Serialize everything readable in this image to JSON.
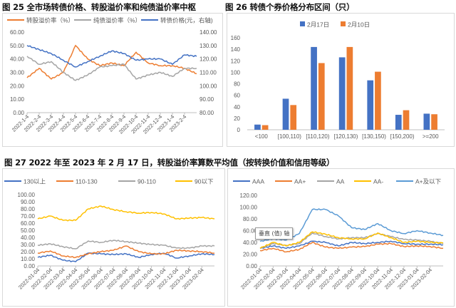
{
  "titles": {
    "fig25": "图 25  全市场转债价格、转股溢价率和纯债溢价率中枢",
    "fig26": "图 26  转债个券价格分布区间（只）",
    "fig27": "图 27  2022 年至 2023 年 2 月 17 日，转股溢价率算数平均值（按转换价值和信用等级）"
  },
  "tooltip": "垂直 (值) 轴",
  "chart_data": [
    {
      "id": "fig25",
      "type": "line",
      "x": [
        "2022-1-4",
        "2022-2-4",
        "2022-3-4",
        "2022-4-4",
        "2022-5-4",
        "2022-6-4",
        "2022-7-4",
        "2022-8-4",
        "2022-9-4",
        "2022-10-4",
        "2022-11-4",
        "2022-12-4",
        "2023-1-4",
        "2023-2-4",
        "2023-2-17"
      ],
      "xticks": [
        "2022-1-4",
        "2022-2-4",
        "2022-3-4",
        "2022-4-4",
        "2022-5-4",
        "2022-6-4",
        "2022-7-4",
        "2022-8-4",
        "2022-9-4",
        "2022-10-4",
        "2022-11-4",
        "2022-12-4",
        "2023-1-4",
        "2023-2-4"
      ],
      "ylim": [
        0,
        60
      ],
      "yticks": [
        "0.00",
        "10.00",
        "20.00",
        "30.00",
        "40.00",
        "50.00",
        "60.00"
      ],
      "y2lim": [
        80,
        140
      ],
      "y2ticks": [
        "80.00",
        "90.00",
        "100.00",
        "110.00",
        "120.00",
        "130.00",
        "140.00"
      ],
      "legend": "top",
      "grid": false,
      "series": [
        {
          "name": "转股溢价率（%）",
          "color": "#ED7D31",
          "axis": "left",
          "values": [
            26,
            33,
            25,
            30,
            50,
            40,
            35,
            37,
            35,
            45,
            37,
            35,
            35,
            33,
            29
          ]
        },
        {
          "name": "纯债溢价率（%）",
          "color": "#A5A5A5",
          "axis": "left",
          "values": [
            42,
            36,
            38,
            30,
            24,
            28,
            34,
            35,
            36,
            25,
            28,
            30,
            27,
            33,
            33
          ]
        },
        {
          "name": "转债价格(元，右轴)",
          "color": "#4472C4",
          "axis": "right",
          "values": [
            130,
            127,
            124,
            119,
            114,
            118,
            122,
            126,
            124,
            119,
            120,
            120,
            116,
            123,
            122
          ]
        }
      ]
    },
    {
      "id": "fig26",
      "type": "bar",
      "categories": [
        "<100",
        "[100,110)",
        "[110,120)",
        "[120,130)",
        "[130,150)",
        "[150,200)",
        ">=200"
      ],
      "ylim": [
        0,
        160
      ],
      "yticks": [
        "0",
        "20",
        "40",
        "60",
        "80",
        "100",
        "120",
        "140",
        "160"
      ],
      "legend": "top",
      "grid": false,
      "series": [
        {
          "name": "2月17日",
          "color": "#4472C4",
          "values": [
            9,
            54,
            144,
            126,
            86,
            26,
            28
          ]
        },
        {
          "name": "2月10日",
          "color": "#ED7D31",
          "values": [
            8,
            43,
            116,
            144,
            101,
            34,
            27
          ]
        }
      ]
    },
    {
      "id": "fig27a",
      "type": "line",
      "x": [
        "2022-01-04",
        "2022-02-04",
        "2022-03-04",
        "2022-04-04",
        "2022-05-04",
        "2022-06-04",
        "2022-07-04",
        "2022-08-04",
        "2022-09-04",
        "2022-10-04",
        "2022-11-04",
        "2022-12-04",
        "2023-01-04",
        "2023-02-04",
        "2023-02-17"
      ],
      "xticks": [
        "2022-01-04",
        "2022-02-04",
        "2022-03-04",
        "2022-04-04",
        "2022-05-04",
        "2022-06-04",
        "2022-07-04",
        "2022-08-04",
        "2022-09-04",
        "2022-10-04",
        "2022-11-04",
        "2022-12-04",
        "2023-01-04",
        "2023-02-04"
      ],
      "ylim": [
        0,
        100
      ],
      "yticks": [
        "0.00",
        "10.00",
        "20.00",
        "30.00",
        "40.00",
        "50.00",
        "60.00",
        "70.00",
        "80.00",
        "90.00",
        "100.00"
      ],
      "legend": "top",
      "grid": false,
      "series": [
        {
          "name": "130以上",
          "color": "#4472C4",
          "values": [
            12,
            15,
            8,
            6,
            18,
            17,
            16,
            17,
            12,
            16,
            18,
            11,
            14,
            17,
            16
          ]
        },
        {
          "name": "110-130",
          "color": "#ED7D31",
          "values": [
            18,
            21,
            14,
            12,
            17,
            20,
            22,
            28,
            20,
            17,
            17,
            22,
            21,
            20,
            18
          ]
        },
        {
          "name": "90-110",
          "color": "#A5A5A5",
          "values": [
            29,
            31,
            27,
            24,
            35,
            33,
            36,
            34,
            32,
            30,
            29,
            25,
            25,
            28,
            28
          ]
        },
        {
          "name": "90以下",
          "color": "#FFC000",
          "values": [
            66,
            70,
            64,
            64,
            80,
            84,
            79,
            76,
            74,
            75,
            73,
            66,
            67,
            68,
            66
          ]
        }
      ]
    },
    {
      "id": "fig27b",
      "type": "line",
      "x": [
        "2022-01-04",
        "2022-02-04",
        "2022-03-04",
        "2022-04-04",
        "2022-05-04",
        "2022-06-04",
        "2022-07-04",
        "2022-08-04",
        "2022-09-04",
        "2022-10-04",
        "2022-11-04",
        "2022-12-04",
        "2023-01-04",
        "2023-02-04",
        "2023-02-17"
      ],
      "xticks": [
        "2022-01-04",
        "2022-02-04",
        "2022-03-04",
        "2022-04-04",
        "2022-05-04",
        "2022-06-04",
        "2022-07-04",
        "2022-08-04",
        "2022-09-04",
        "2022-10-04",
        "2022-11-04",
        "2022-12-04",
        "2023-01-04",
        "2023-02-04"
      ],
      "ylim": [
        0,
        120
      ],
      "yticks": [
        "0.00",
        "20.00",
        "40.00",
        "60.00",
        "80.00",
        "100.00",
        "120.00"
      ],
      "legend": "top",
      "grid": false,
      "series": [
        {
          "name": "AAA",
          "color": "#4472C4",
          "values": [
            30,
            34,
            30,
            34,
            42,
            40,
            34,
            40,
            38,
            40,
            42,
            38,
            37,
            37,
            36
          ]
        },
        {
          "name": "AA+",
          "color": "#ED7D31",
          "values": [
            26,
            30,
            24,
            28,
            40,
            32,
            30,
            32,
            33,
            37,
            38,
            33,
            34,
            33,
            30
          ]
        },
        {
          "name": "AA",
          "color": "#A5A5A5",
          "values": [
            30,
            38,
            35,
            38,
            56,
            50,
            46,
            48,
            48,
            55,
            50,
            45,
            44,
            42,
            38
          ]
        },
        {
          "name": "AA-",
          "color": "#FFC000",
          "values": [
            30,
            40,
            34,
            40,
            58,
            54,
            48,
            46,
            46,
            56,
            48,
            40,
            42,
            40,
            39
          ]
        },
        {
          "name": "A+及以下",
          "color": "#5B9BD5",
          "values": [
            42,
            46,
            44,
            55,
            96,
            96,
            85,
            65,
            62,
            72,
            60,
            55,
            60,
            56,
            52
          ]
        }
      ]
    }
  ]
}
